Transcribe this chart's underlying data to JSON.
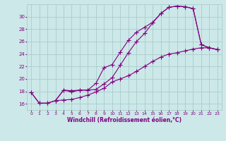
{
  "xlabel": "Windchill (Refroidissement éolien,°C)",
  "bg_color": "#cce8e8",
  "grid_color": "#aacccc",
  "line_color": "#800080",
  "xlim": [
    -0.5,
    23.5
  ],
  "ylim": [
    15.0,
    32.0
  ],
  "yticks": [
    16,
    18,
    20,
    22,
    24,
    26,
    28,
    30
  ],
  "xticks": [
    0,
    1,
    2,
    3,
    4,
    5,
    6,
    7,
    8,
    9,
    10,
    11,
    12,
    13,
    14,
    15,
    16,
    17,
    18,
    19,
    20,
    21,
    22,
    23
  ],
  "line1_x": [
    0,
    1,
    2,
    3,
    4,
    5,
    6,
    7,
    8,
    9,
    10,
    11,
    12,
    13,
    14,
    15,
    16,
    17,
    18,
    19,
    20,
    21,
    22,
    23
  ],
  "line1_y": [
    17.8,
    16.1,
    16.1,
    16.5,
    18.2,
    18.1,
    18.2,
    18.2,
    19.3,
    21.8,
    22.3,
    24.3,
    26.2,
    27.5,
    28.3,
    29.1,
    30.5,
    31.5,
    31.7,
    31.6,
    31.3,
    25.5,
    25.0,
    24.7
  ],
  "line2_x": [
    3,
    4,
    5,
    6,
    7,
    8,
    9,
    10,
    11,
    12,
    13,
    14,
    15,
    16,
    17,
    18,
    19,
    20,
    21,
    22,
    23
  ],
  "line2_y": [
    16.5,
    18.2,
    17.9,
    18.2,
    18.2,
    18.3,
    19.2,
    20.2,
    22.2,
    24.2,
    26.0,
    27.3,
    29.0,
    30.5,
    31.5,
    31.7,
    31.6,
    31.3,
    25.5,
    25.0,
    24.7
  ],
  "line3_x": [
    0,
    1,
    2,
    3,
    4,
    5,
    6,
    7,
    8,
    9,
    10,
    11,
    12,
    13,
    14,
    15,
    16,
    17,
    18,
    19,
    20,
    21,
    22,
    23
  ],
  "line3_y": [
    17.8,
    16.1,
    16.1,
    16.5,
    16.6,
    16.7,
    17.0,
    17.4,
    17.9,
    18.5,
    19.5,
    20.0,
    20.5,
    21.2,
    22.0,
    22.8,
    23.5,
    24.0,
    24.2,
    24.5,
    24.8,
    25.0,
    25.0,
    24.7
  ]
}
